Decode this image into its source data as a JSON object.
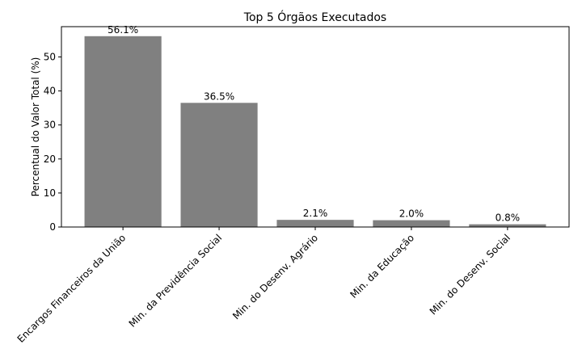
{
  "chart_data": {
    "type": "bar",
    "title": "Top 5 Órgãos Executados",
    "ylabel": "Percentual do Valor Total (%)",
    "categories": [
      "Encargos Financeiros da União",
      "Min. da Previdência Social",
      "Min. do Desenv. Agrário",
      "Min. da Educação",
      "Min. do Desenv. Social"
    ],
    "values": [
      56.1,
      36.5,
      2.1,
      2.0,
      0.8
    ],
    "value_labels": [
      "56.1%",
      "36.5%",
      "2.1%",
      "2.0%",
      "0.8%"
    ],
    "color": "#808080",
    "ylim": [
      0,
      58.9
    ],
    "yticks": [
      0,
      10,
      20,
      30,
      40,
      50
    ],
    "grid": false
  }
}
